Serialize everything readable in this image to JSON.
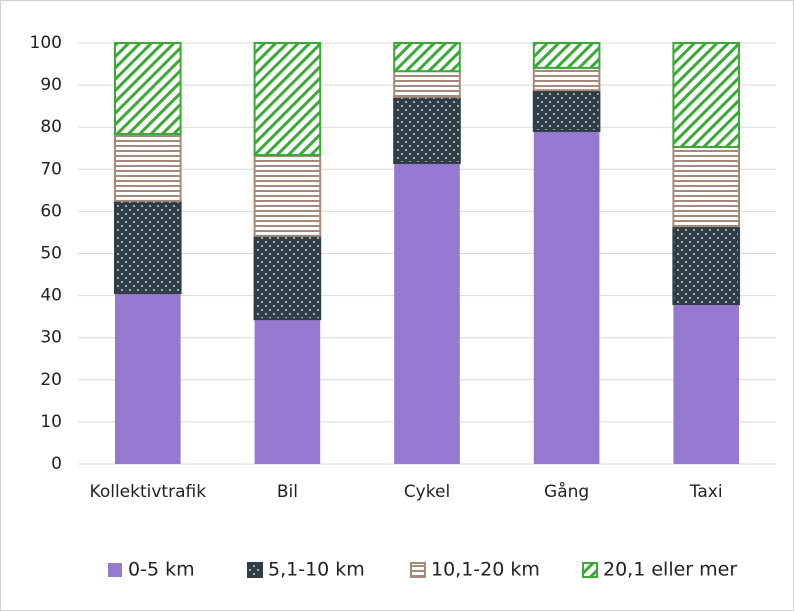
{
  "chart_data": {
    "type": "stacked_bar",
    "categories": [
      "Kollektivtrafik",
      "Bil",
      "Cykel",
      "Gång",
      "Taxi"
    ],
    "series": [
      {
        "name": "0-5 km",
        "color": "#9579d1",
        "values": [
          40.6,
          34.4,
          71.5,
          79.1,
          38.0
        ]
      },
      {
        "name": "5,1-10 km",
        "color": "#2f3e46",
        "values": [
          21.9,
          19.8,
          15.7,
          9.7,
          18.5
        ]
      },
      {
        "name": "10,1-20 km",
        "color": "#a58a7c",
        "values": [
          15.9,
          19.2,
          6.1,
          5.3,
          18.8
        ]
      },
      {
        "name": "20,1 eller mer",
        "color": "#3aa935",
        "values": [
          21.6,
          26.6,
          6.7,
          5.9,
          24.7
        ]
      }
    ],
    "ylim": [
      0,
      100
    ],
    "yticks": [
      0,
      10,
      20,
      30,
      40,
      50,
      60,
      70,
      80,
      90,
      100
    ],
    "grid": true,
    "legend": "bottom"
  }
}
